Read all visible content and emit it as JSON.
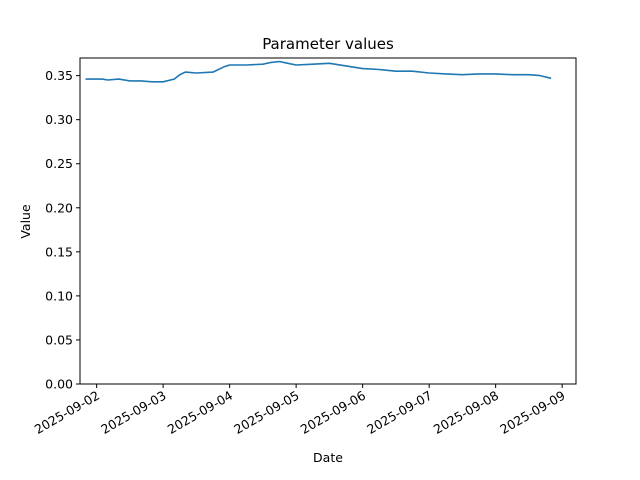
{
  "chart_data": {
    "type": "line",
    "title": "Parameter values",
    "xlabel": "Date",
    "ylabel": "Value",
    "ylim": [
      0,
      0.37
    ],
    "xlim": [
      "2025-09-01T18:00",
      "2025-09-09T05:00"
    ],
    "grid": false,
    "x_ticks": [
      "2025-09-02",
      "2025-09-03",
      "2025-09-04",
      "2025-09-05",
      "2025-09-06",
      "2025-09-07",
      "2025-09-08",
      "2025-09-09"
    ],
    "y_ticks": [
      "0.00",
      "0.05",
      "0.10",
      "0.15",
      "0.20",
      "0.25",
      "0.30",
      "0.35"
    ],
    "series": [
      {
        "color": "#1f77b4",
        "x": [
          "2025-09-01T20:00",
          "2025-09-02T02:00",
          "2025-09-02T04:00",
          "2025-09-02T08:00",
          "2025-09-02T12:00",
          "2025-09-02T16:00",
          "2025-09-02T20:00",
          "2025-09-03T00:00",
          "2025-09-03T04:00",
          "2025-09-03T06:00",
          "2025-09-03T08:00",
          "2025-09-03T12:00",
          "2025-09-03T18:00",
          "2025-09-03T22:00",
          "2025-09-04T00:00",
          "2025-09-04T06:00",
          "2025-09-04T12:00",
          "2025-09-04T15:00",
          "2025-09-04T18:00",
          "2025-09-04T21:00",
          "2025-09-05T00:00",
          "2025-09-05T06:00",
          "2025-09-05T12:00",
          "2025-09-05T18:00",
          "2025-09-06T00:00",
          "2025-09-06T06:00",
          "2025-09-06T12:00",
          "2025-09-06T18:00",
          "2025-09-07T00:00",
          "2025-09-07T06:00",
          "2025-09-07T12:00",
          "2025-09-07T18:00",
          "2025-09-08T00:00",
          "2025-09-08T06:00",
          "2025-09-08T12:00",
          "2025-09-08T16:00",
          "2025-09-08T20:00"
        ],
        "y": [
          0.346,
          0.346,
          0.345,
          0.346,
          0.344,
          0.344,
          0.343,
          0.343,
          0.346,
          0.351,
          0.354,
          0.353,
          0.354,
          0.36,
          0.362,
          0.362,
          0.363,
          0.365,
          0.366,
          0.364,
          0.362,
          0.363,
          0.364,
          0.361,
          0.358,
          0.357,
          0.355,
          0.355,
          0.353,
          0.352,
          0.351,
          0.352,
          0.352,
          0.351,
          0.351,
          0.35,
          0.347
        ]
      }
    ]
  }
}
